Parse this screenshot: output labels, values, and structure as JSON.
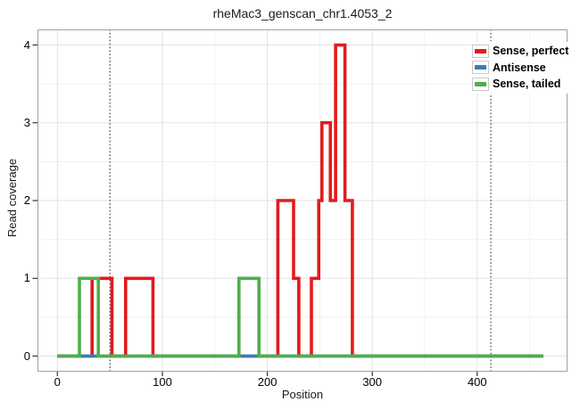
{
  "chart_data": {
    "type": "step-line",
    "title": "rheMac3_genscan_chr1.4053_2",
    "xlabel": "Position",
    "ylabel": "Read coverage",
    "xlim": [
      -19,
      486
    ],
    "ylim": [
      -0.2,
      4.2
    ],
    "x_major_ticks": [
      0,
      100,
      200,
      300,
      400
    ],
    "x_minor_ticks": [
      50,
      150,
      250,
      350,
      450
    ],
    "y_major_ticks": [
      0,
      1,
      2,
      3,
      4
    ],
    "y_minor_ticks": [
      0.5,
      1.5,
      2.5,
      3.5
    ],
    "grid": {
      "major_color": "#e2e2e2",
      "minor_color": "#f1f1f1",
      "grid_on": true
    },
    "panel_border_color": "#a0a0a0",
    "background_color": "#ffffff",
    "vlines": {
      "color": "#3c3c3c",
      "style": "dotted",
      "positions": [
        50,
        413
      ]
    },
    "legend": {
      "position": "top-right",
      "entries": [
        {
          "label": "Sense, perfect",
          "color": "#e41a1c"
        },
        {
          "label": "Antisense",
          "color": "#377eb8"
        },
        {
          "label": "Sense, tailed",
          "color": "#4daf4a"
        }
      ]
    },
    "series": [
      {
        "name": "Sense, perfect",
        "color": "#e41a1c",
        "points": [
          [
            0,
            0
          ],
          [
            33,
            0
          ],
          [
            33,
            1
          ],
          [
            52,
            1
          ],
          [
            52,
            0
          ],
          [
            65,
            0
          ],
          [
            65,
            1
          ],
          [
            91,
            1
          ],
          [
            91,
            0
          ],
          [
            210,
            0
          ],
          [
            210,
            2
          ],
          [
            225,
            2
          ],
          [
            225,
            1
          ],
          [
            230,
            1
          ],
          [
            230,
            0
          ],
          [
            242,
            0
          ],
          [
            242,
            1
          ],
          [
            249,
            1
          ],
          [
            249,
            2
          ],
          [
            252,
            2
          ],
          [
            252,
            3
          ],
          [
            260,
            3
          ],
          [
            260,
            2
          ],
          [
            265,
            2
          ],
          [
            265,
            4
          ],
          [
            274,
            4
          ],
          [
            274,
            2
          ],
          [
            281,
            2
          ],
          [
            281,
            0
          ],
          [
            463,
            0
          ]
        ]
      },
      {
        "name": "Antisense",
        "color": "#377eb8",
        "points": [
          [
            0,
            0
          ],
          [
            463,
            0
          ]
        ]
      },
      {
        "name": "Sense, tailed",
        "color": "#4daf4a",
        "points": [
          [
            0,
            0
          ],
          [
            21,
            0
          ],
          [
            21,
            1
          ],
          [
            39,
            1
          ],
          [
            39,
            0
          ],
          [
            173,
            0
          ],
          [
            173,
            1
          ],
          [
            192,
            1
          ],
          [
            192,
            0
          ],
          [
            463,
            0
          ]
        ]
      }
    ]
  }
}
